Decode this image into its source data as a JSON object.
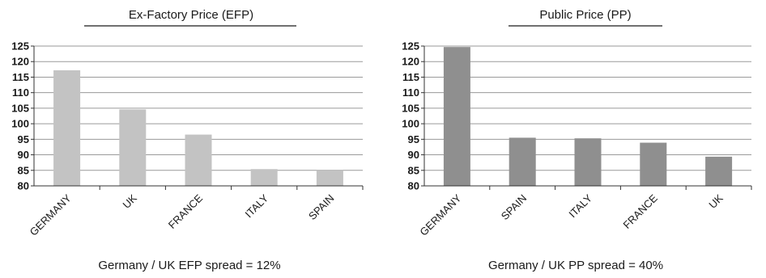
{
  "chart_data": [
    {
      "type": "bar",
      "title": "Ex-Factory Price (EFP)",
      "categories": [
        "GERMANY",
        "UK",
        "FRANCE",
        "ITALY",
        "SPAIN"
      ],
      "values": [
        117.2,
        104.6,
        96.5,
        85.4,
        85.0
      ],
      "ylim": [
        80,
        125
      ],
      "yticks": [
        80,
        85,
        90,
        95,
        100,
        105,
        110,
        115,
        120,
        125
      ],
      "bar_color": "#c3c3c3",
      "grid": true,
      "caption": "Germany / UK EFP spread = 12%"
    },
    {
      "type": "bar",
      "title": "Public Price (PP)",
      "categories": [
        "GERMANY",
        "SPAIN",
        "ITALY",
        "FRANCE",
        "UK"
      ],
      "values": [
        124.7,
        95.5,
        95.3,
        93.9,
        89.4
      ],
      "ylim": [
        80,
        125
      ],
      "yticks": [
        80,
        85,
        90,
        95,
        100,
        105,
        110,
        115,
        120,
        125
      ],
      "bar_color": "#8f8f8f",
      "grid": true,
      "caption": "Germany / UK PP spread = 40%"
    }
  ]
}
